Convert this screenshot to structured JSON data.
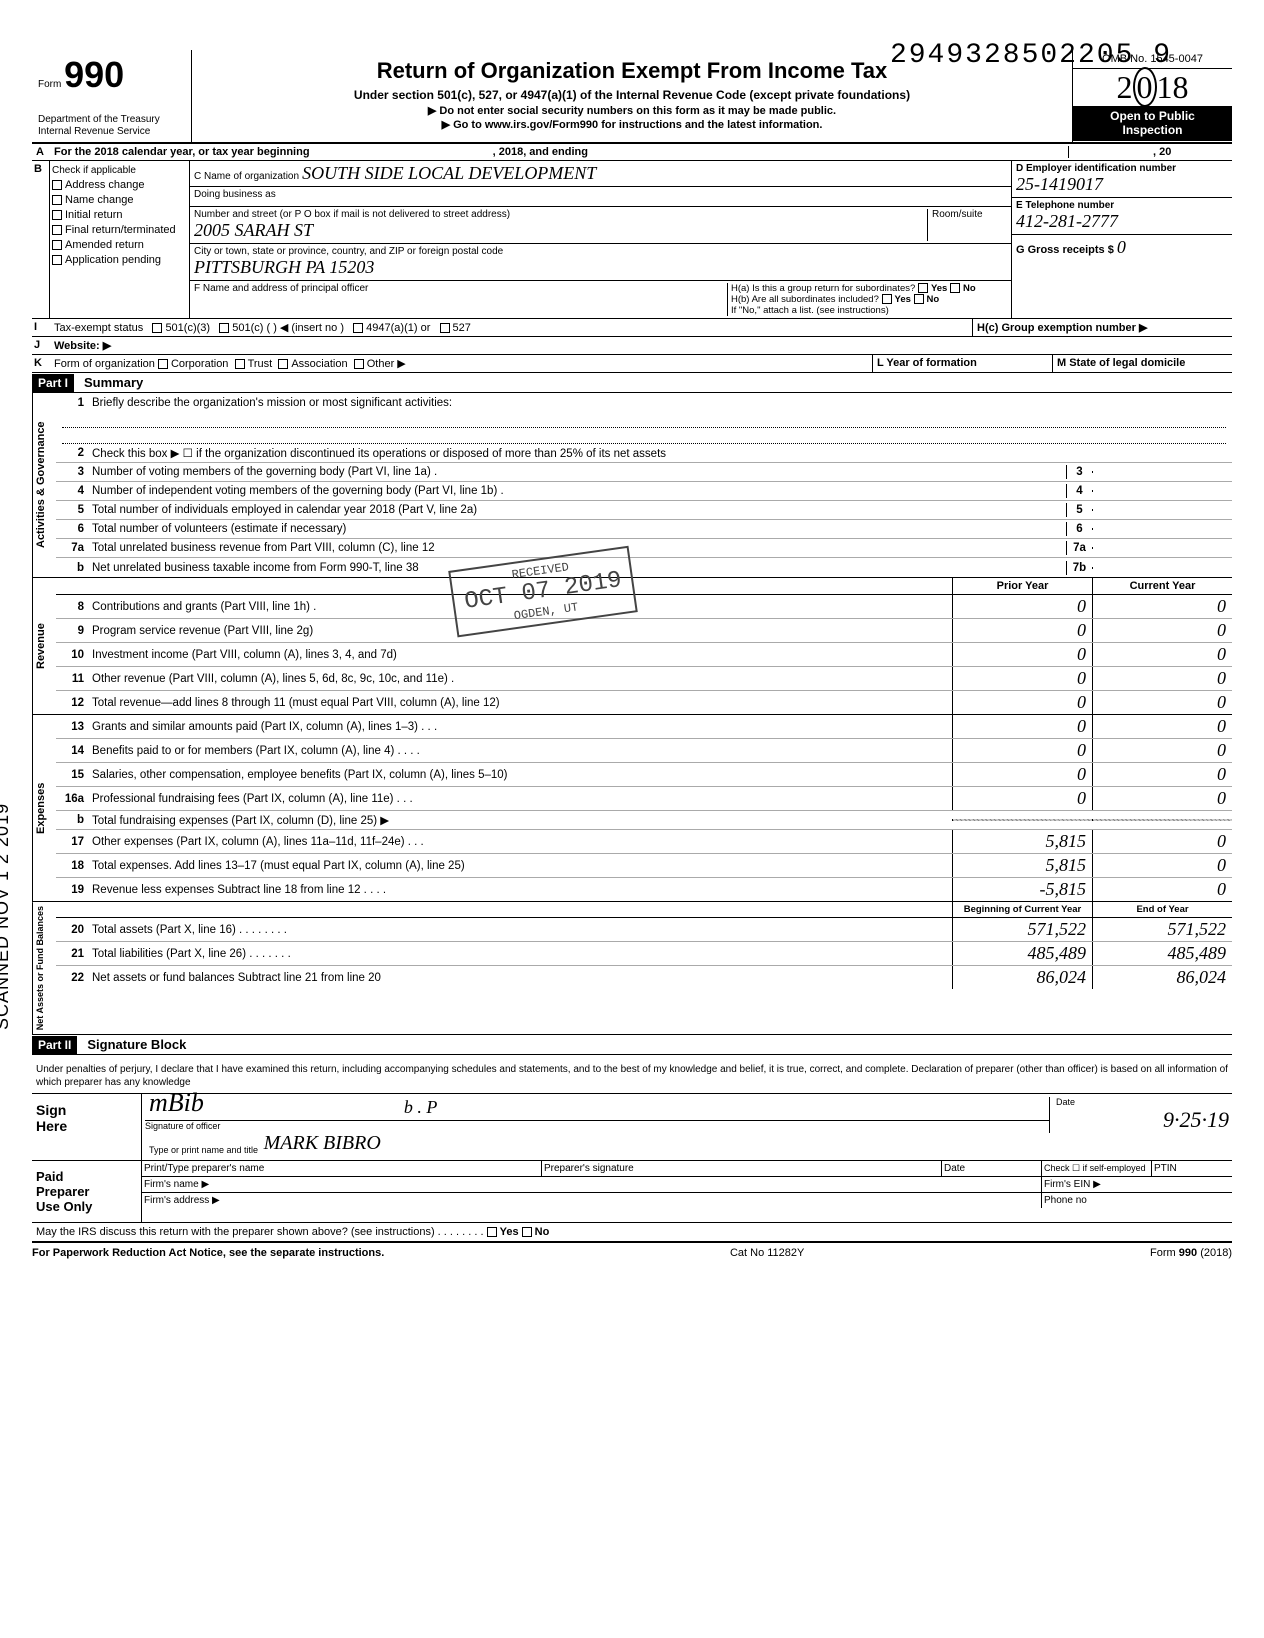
{
  "tracking_number": "2949328502205 9",
  "header": {
    "form_prefix": "Form",
    "form_number": "990",
    "dept1": "Department of the Treasury",
    "dept2": "Internal Revenue Service",
    "title": "Return of Organization Exempt From Income Tax",
    "subtitle": "Under section 501(c), 527, or 4947(a)(1) of the Internal Revenue Code (except private foundations)",
    "note1": "▶ Do not enter social security numbers on this form as it may be made public.",
    "note2": "▶ Go to www.irs.gov/Form990 for instructions and the latest information.",
    "omb": "OMB No. 1545-0047",
    "year": "2018",
    "open1": "Open to Public",
    "open2": "Inspection"
  },
  "row_a": {
    "letter": "A",
    "text_left": "For the 2018 calendar year, or tax year beginning",
    "text_mid": ", 2018, and ending",
    "text_right": ", 20"
  },
  "section_b": {
    "letter": "B",
    "check_label": "Check if applicable",
    "checks": [
      "Address change",
      "Name change",
      "Initial return",
      "Final return/terminated",
      "Amended return",
      "Application pending"
    ],
    "c_label": "C Name of organization",
    "c_value": "SOUTH SIDE LOCAL DEVELOPMENT",
    "dba_label": "Doing business as",
    "street_label": "Number and street (or P O box if mail is not delivered to street address)",
    "room_label": "Room/suite",
    "street_value": "2005 SARAH ST",
    "city_label": "City or town, state or province, country, and ZIP or foreign postal code",
    "city_value": "PITTSBURGH   PA   15203",
    "f_label": "F Name and address of principal officer",
    "d_label": "D Employer identification number",
    "d_value": "25-1419017",
    "e_label": "E Telephone number",
    "e_value": "412-281-2777",
    "g_label": "G Gross receipts $",
    "g_value": "0",
    "h_a": "H(a) Is this a group return for subordinates?",
    "h_b": "H(b) Are all subordinates included?",
    "h_note": "If \"No,\" attach a list. (see instructions)",
    "h_c": "H(c) Group exemption number ▶",
    "yes": "Yes",
    "no": "No"
  },
  "row_i": {
    "letter": "I",
    "label": "Tax-exempt status",
    "opts": [
      "501(c)(3)",
      "501(c) (    ) ◀ (insert no )",
      "4947(a)(1) or",
      "527"
    ]
  },
  "row_j": {
    "letter": "J",
    "label": "Website: ▶"
  },
  "row_k": {
    "letter": "K",
    "label": "Form of organization",
    "opts": [
      "Corporation",
      "Trust",
      "Association",
      "Other ▶"
    ],
    "l_label": "L Year of formation",
    "m_label": "M State of legal domicile"
  },
  "part1": {
    "tag": "Part I",
    "title": "Summary"
  },
  "side_labels": {
    "ag": "Activities & Governance",
    "rev": "Revenue",
    "exp": "Expenses",
    "net": "Net Assets or\nFund Balances"
  },
  "lines_ag": [
    {
      "n": "1",
      "t": "Briefly describe the organization's mission or most significant activities:"
    },
    {
      "n": "2",
      "t": "Check this box ▶ ☐ if the organization discontinued its operations or disposed of more than 25% of its net assets"
    },
    {
      "n": "3",
      "t": "Number of voting members of the governing body (Part VI, line 1a) .",
      "box": "3"
    },
    {
      "n": "4",
      "t": "Number of independent voting members of the governing body (Part VI, line 1b)  .",
      "box": "4"
    },
    {
      "n": "5",
      "t": "Total number of individuals employed in calendar year 2018 (Part V, line 2a)",
      "box": "5"
    },
    {
      "n": "6",
      "t": "Total number of volunteers (estimate if necessary)",
      "box": "6"
    },
    {
      "n": "7a",
      "t": "Total unrelated business revenue from Part VIII, column (C), line 12",
      "box": "7a"
    },
    {
      "n": "b",
      "t": "Net unrelated business taxable income from Form 990-T, line 38",
      "box": "7b"
    }
  ],
  "cols_header": {
    "prior": "Prior Year",
    "current": "Current Year"
  },
  "lines_rev": [
    {
      "n": "8",
      "t": "Contributions and grants (Part VIII, line 1h) .",
      "p": "0",
      "c": "0"
    },
    {
      "n": "9",
      "t": "Program service revenue (Part VIII, line 2g)",
      "p": "0",
      "c": "0"
    },
    {
      "n": "10",
      "t": "Investment income (Part VIII, column (A), lines 3, 4, and 7d)",
      "p": "0",
      "c": "0"
    },
    {
      "n": "11",
      "t": "Other revenue (Part VIII, column (A), lines 5, 6d, 8c, 9c, 10c, and 11e) .",
      "p": "0",
      "c": "0"
    },
    {
      "n": "12",
      "t": "Total revenue—add lines 8 through 11 (must equal Part VIII, column (A), line 12)",
      "p": "0",
      "c": "0"
    }
  ],
  "lines_exp": [
    {
      "n": "13",
      "t": "Grants and similar amounts paid (Part IX, column (A), lines 1–3) . . .",
      "p": "0",
      "c": "0"
    },
    {
      "n": "14",
      "t": "Benefits paid to or for members (Part IX, column (A), line 4) . . . .",
      "p": "0",
      "c": "0"
    },
    {
      "n": "15",
      "t": "Salaries, other compensation, employee benefits (Part IX, column (A), lines 5–10)",
      "p": "0",
      "c": "0"
    },
    {
      "n": "16a",
      "t": "Professional fundraising fees (Part IX, column (A), line 11e)  .  .  .",
      "p": "0",
      "c": "0"
    },
    {
      "n": "b",
      "t": "Total fundraising expenses (Part IX, column (D), line 25) ▶",
      "p": "",
      "c": "",
      "shaded": true
    },
    {
      "n": "17",
      "t": "Other expenses (Part IX, column (A), lines 11a–11d, 11f–24e)  .  .  .",
      "p": "5,815",
      "c": "0"
    },
    {
      "n": "18",
      "t": "Total expenses. Add lines 13–17 (must equal Part IX, column (A), line 25)",
      "p": "5,815",
      "c": "0"
    },
    {
      "n": "19",
      "t": "Revenue less expenses  Subtract line 18 from line 12  .  .  .  .",
      "p": "-5,815",
      "c": "0"
    }
  ],
  "cols_header2": {
    "prior": "Beginning of Current Year",
    "current": "End of Year"
  },
  "lines_net": [
    {
      "n": "20",
      "t": "Total assets (Part X, line 16) .  .  .  .  .  .  .  .",
      "p": "571,522",
      "c": "571,522"
    },
    {
      "n": "21",
      "t": "Total liabilities (Part X, line 26) .  .  .  .  .  .  .",
      "p": "485,489",
      "c": "485,489"
    },
    {
      "n": "22",
      "t": "Net assets or fund balances  Subtract line 21 from line 20",
      "p": "86,024",
      "c": "86,024"
    }
  ],
  "part2": {
    "tag": "Part II",
    "title": "Signature Block"
  },
  "sig": {
    "decl": "Under penalties of perjury, I declare that I have examined this return, including accompanying schedules and statements, and to the best of my knowledge and belief, it is true, correct, and complete. Declaration of preparer (other than officer) is based on all information of which preparer has any knowledge",
    "sign_here": "Sign\nHere",
    "sig_officer": "Signature of officer",
    "date_label": "Date",
    "date_value": "9·25·19",
    "type_name": "Type or print name and title",
    "name_value": "MARK   BIBRO",
    "initials": "b . P",
    "paid": "Paid\nPreparer\nUse Only",
    "prep_name": "Print/Type preparer's name",
    "prep_sig": "Preparer's signature",
    "ptin": "PTIN",
    "check_self": "Check ☐ if self-employed",
    "firm_name": "Firm's name  ▶",
    "firm_ein": "Firm's EIN ▶",
    "firm_addr": "Firm's address ▶",
    "phone": "Phone no",
    "discuss": "May the IRS discuss this return with the preparer shown above? (see instructions)  .  .  .  .  .  .  .  .",
    "yes": "Yes",
    "no": "No"
  },
  "footer": {
    "left": "For Paperwork Reduction Act Notice, see the separate instructions.",
    "mid": "Cat No 11282Y",
    "right": "Form 990 (2018)"
  },
  "stamp": {
    "received": "RECEIVED",
    "date": "OCT 07 2019",
    "ogden": "OGDEN, UT"
  },
  "side_stamp": "SCANNED NOV 1 2 2019"
}
